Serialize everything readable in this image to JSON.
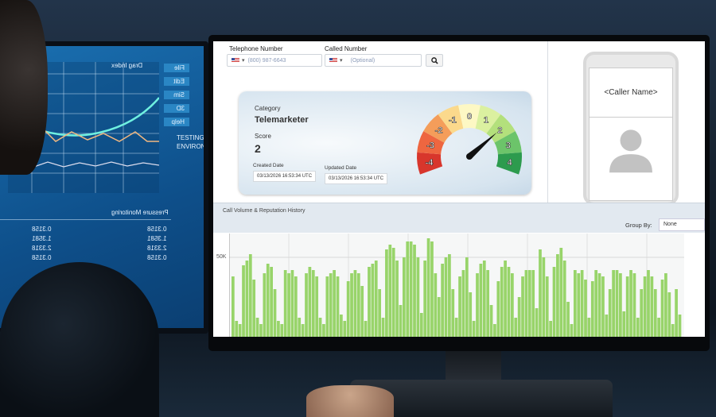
{
  "left_monitor": {
    "chart_title": "Drag Index",
    "table_title": "Pressure Monitoring",
    "side_buttons": [
      "File",
      "Edit",
      "Sim",
      "3D",
      "Help"
    ],
    "vertical_text": "TESTING ENVIRONMENT",
    "rows": [
      "0.3158",
      "1.3581",
      "2.3318",
      "0.3158"
    ]
  },
  "lookup": {
    "telephone_label": "Telephone Number",
    "telephone_value": "(800) 987-6643",
    "called_label": "Called Number",
    "called_placeholder": "(Optional)",
    "search_icon": "search-icon"
  },
  "result": {
    "category_label": "Category",
    "category_value": "Telemarketer",
    "score_label": "Score",
    "score_value": "2",
    "created_label": "Created Date",
    "created_value": "03/13/2026 16:53:34 UTC",
    "updated_label": "Updated Date",
    "updated_value": "03/13/2026 16:53:34 UTC"
  },
  "gauge": {
    "labels": [
      "-4",
      "-3",
      "-2",
      "-1",
      "0",
      "1",
      "2",
      "3",
      "4"
    ],
    "colors": [
      "#d8362c",
      "#ee6640",
      "#f49d5a",
      "#fbd98c",
      "#fdf8c4",
      "#dbf0a0",
      "#b3e07c",
      "#6cc46a",
      "#2d9b4e"
    ],
    "value": 2
  },
  "caller": {
    "name": "<Caller Name>",
    "avatar_icon": "user-icon"
  },
  "history": {
    "title": "Call Volume & Reputation History",
    "group_by_label": "Group By:",
    "group_by_value": "None"
  },
  "chart_data": {
    "type": "bar",
    "title": "",
    "yticks": [
      "50K"
    ],
    "ylim": [
      0,
      65000
    ],
    "grid": true,
    "color": "#98d46a",
    "values": [
      38000,
      10000,
      8000,
      45000,
      48000,
      52000,
      36000,
      12000,
      8000,
      40000,
      46000,
      44000,
      30000,
      10000,
      8000,
      42000,
      40000,
      42000,
      38000,
      12000,
      8000,
      40000,
      44000,
      42000,
      38000,
      12000,
      8000,
      38000,
      40000,
      42000,
      38000,
      14000,
      10000,
      35000,
      40000,
      42000,
      40000,
      32000,
      10000,
      44000,
      46000,
      48000,
      30000,
      12000,
      55000,
      58000,
      56000,
      48000,
      20000,
      50000,
      60000,
      60000,
      58000,
      50000,
      15000,
      48000,
      62000,
      60000,
      40000,
      25000,
      46000,
      50000,
      52000,
      30000,
      12000,
      38000,
      42000,
      50000,
      28000,
      10000,
      40000,
      46000,
      48000,
      42000,
      20000,
      8000,
      35000,
      44000,
      48000,
      44000,
      40000,
      12000,
      25000,
      38000,
      42000,
      42000,
      42000,
      18000,
      55000,
      50000,
      38000,
      10000,
      44000,
      52000,
      56000,
      48000,
      22000,
      8000,
      42000,
      40000,
      42000,
      36000,
      12000,
      35000,
      42000,
      40000,
      38000,
      14000,
      30000,
      42000,
      42000,
      40000,
      16000,
      38000,
      42000,
      40000,
      12000,
      30000,
      38000,
      42000,
      38000,
      30000,
      12000,
      36000,
      40000,
      28000,
      8000,
      30000,
      14000
    ]
  }
}
